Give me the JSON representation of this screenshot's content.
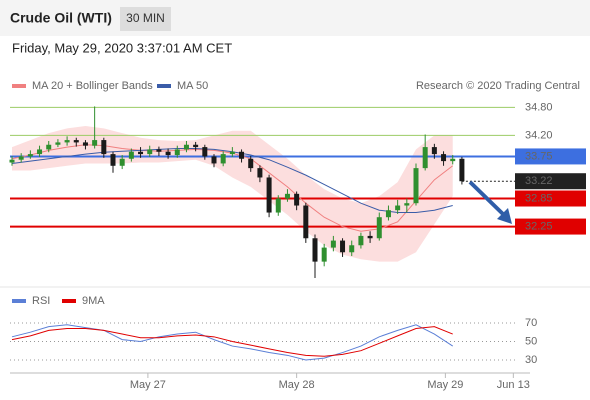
{
  "header": {
    "title": "Crude Oil (WTI)",
    "interval": "30 MIN",
    "timestamp": "Friday, May 29, 2020 3:37:01 AM CET"
  },
  "chart_data": [
    {
      "type": "candlestick",
      "legend": [
        {
          "name": "MA 20 + Bollinger Bands",
          "color": "#f08080"
        },
        {
          "name": "MA 50",
          "color": "#3a5ca8"
        }
      ],
      "credit": "Research © 2020 Trading Central",
      "xlim": [
        0,
        55
      ],
      "ylim": [
        31.0,
        35.0
      ],
      "up_color": "#2f8f2f",
      "down_color": "#1a1a1a",
      "open": [
        33.62,
        33.68,
        33.75,
        33.8,
        33.9,
        34.0,
        34.05,
        34.1,
        34.05,
        33.98,
        34.1,
        33.8,
        33.55,
        33.7,
        33.85,
        33.8,
        33.9,
        33.85,
        33.78,
        33.9,
        34.0,
        33.95,
        33.75,
        33.6,
        33.8,
        33.85,
        33.7,
        33.5,
        33.3,
        32.55,
        32.85,
        32.95,
        32.7,
        32.0,
        31.5,
        31.8,
        31.95,
        31.7,
        31.85,
        32.05,
        32.0,
        32.45,
        32.6,
        32.7,
        32.75,
        33.5,
        33.95,
        33.8,
        33.65,
        33.7
      ],
      "high": [
        33.76,
        33.82,
        33.88,
        33.98,
        34.08,
        34.12,
        34.18,
        34.15,
        34.1,
        34.82,
        34.15,
        33.85,
        33.78,
        33.92,
        33.95,
        33.98,
        33.96,
        33.92,
        33.98,
        34.08,
        34.06,
        34.0,
        33.8,
        33.86,
        33.95,
        33.9,
        33.76,
        33.56,
        33.36,
        32.92,
        33.05,
        33.0,
        32.76,
        32.08,
        31.88,
        32.05,
        32.0,
        31.95,
        32.12,
        32.15,
        32.55,
        32.7,
        32.82,
        32.85,
        33.6,
        34.22,
        34.02,
        33.86,
        33.78,
        33.74
      ],
      "low": [
        33.55,
        33.62,
        33.7,
        33.74,
        33.84,
        33.95,
        33.98,
        33.96,
        33.9,
        33.92,
        33.72,
        33.4,
        33.48,
        33.64,
        33.72,
        33.74,
        33.76,
        33.7,
        33.72,
        33.84,
        33.86,
        33.68,
        33.52,
        33.54,
        33.74,
        33.62,
        33.42,
        33.2,
        32.45,
        32.48,
        32.78,
        32.6,
        31.9,
        31.15,
        31.4,
        31.72,
        31.6,
        31.62,
        31.78,
        31.9,
        31.95,
        32.38,
        32.52,
        32.55,
        32.7,
        33.45,
        33.7,
        33.55,
        33.58,
        33.15
      ],
      "close": [
        33.68,
        33.75,
        33.8,
        33.9,
        34.0,
        34.05,
        34.1,
        34.05,
        33.98,
        34.1,
        33.8,
        33.55,
        33.7,
        33.85,
        33.8,
        33.9,
        33.85,
        33.78,
        33.9,
        34.0,
        33.95,
        33.75,
        33.6,
        33.8,
        33.85,
        33.7,
        33.5,
        33.3,
        32.55,
        32.85,
        32.95,
        32.7,
        32.0,
        31.5,
        31.8,
        31.95,
        31.7,
        31.85,
        32.05,
        32.0,
        32.45,
        32.6,
        32.7,
        32.75,
        33.5,
        33.95,
        33.8,
        33.65,
        33.7,
        33.22
      ],
      "overlay_x": [
        0,
        2,
        4,
        6,
        8,
        10,
        12,
        14,
        16,
        18,
        20,
        22,
        24,
        26,
        28,
        30,
        32,
        34,
        36,
        38,
        40,
        42,
        44,
        46,
        48
      ],
      "band_color": "#fbd6d6",
      "band_upper": [
        33.95,
        34.1,
        34.25,
        34.35,
        34.4,
        34.35,
        34.25,
        34.15,
        34.1,
        34.08,
        34.1,
        34.2,
        34.3,
        34.3,
        34.0,
        33.7,
        33.35,
        33.05,
        32.85,
        32.75,
        32.9,
        33.2,
        33.9,
        34.2,
        34.2
      ],
      "band_lower": [
        33.45,
        33.45,
        33.5,
        33.55,
        33.6,
        33.6,
        33.6,
        33.62,
        33.62,
        33.65,
        33.68,
        33.55,
        33.3,
        33.1,
        32.8,
        32.5,
        32.15,
        31.85,
        31.65,
        31.55,
        31.5,
        31.5,
        31.7,
        32.3,
        32.9
      ],
      "ma20": [
        33.7,
        33.78,
        33.88,
        33.95,
        34.0,
        33.98,
        33.92,
        33.88,
        33.86,
        33.88,
        33.9,
        33.88,
        33.82,
        33.7,
        33.4,
        33.1,
        32.75,
        32.45,
        32.25,
        32.15,
        32.2,
        32.35,
        32.8,
        33.25,
        33.55
      ],
      "ma50": [
        33.6,
        33.65,
        33.7,
        33.75,
        33.8,
        33.84,
        33.86,
        33.88,
        33.9,
        33.92,
        33.92,
        33.9,
        33.85,
        33.78,
        33.68,
        33.52,
        33.35,
        33.15,
        32.95,
        32.75,
        32.6,
        32.55,
        32.55,
        32.6,
        32.7
      ],
      "levels": [
        {
          "value": 34.8,
          "label": "34.80",
          "color": "#9ccc65",
          "style": "text"
        },
        {
          "value": 34.2,
          "label": "34.20",
          "color": "#9ccc65",
          "style": "text"
        },
        {
          "value": 33.75,
          "label": "33.75",
          "color": "#3d6fe0",
          "style": "box"
        },
        {
          "value": 33.22,
          "label": "33.22",
          "color": "#222222",
          "style": "dotted"
        },
        {
          "value": 32.85,
          "label": "32.85",
          "color": "#e00000",
          "style": "box"
        },
        {
          "value": 32.25,
          "label": "32.25",
          "color": "#e00000",
          "style": "box"
        }
      ]
    },
    {
      "type": "line",
      "xlim": [
        0,
        55
      ],
      "ylim": [
        20,
        80
      ],
      "yticks": [
        30,
        50,
        70
      ],
      "xticks": [
        {
          "value": 14.8,
          "label": "May 27"
        },
        {
          "value": 31,
          "label": "May 28"
        },
        {
          "value": 47.2,
          "label": "May 29"
        },
        {
          "value": 54.6,
          "label": "Jun 13"
        }
      ],
      "x": [
        0,
        2,
        4,
        6,
        8,
        10,
        12,
        14,
        16,
        18,
        20,
        22,
        24,
        26,
        28,
        30,
        32,
        34,
        36,
        38,
        40,
        42,
        44,
        46,
        48
      ],
      "series": [
        {
          "name": "RSI",
          "color": "#5b7fd6",
          "values": [
            55,
            60,
            66,
            68,
            65,
            62,
            52,
            50,
            55,
            58,
            60,
            52,
            45,
            42,
            38,
            35,
            30,
            32,
            38,
            45,
            55,
            62,
            68,
            58,
            45
          ]
        },
        {
          "name": "9MA",
          "color": "#e00000",
          "values": [
            52,
            56,
            62,
            64,
            64,
            62,
            58,
            54,
            54,
            56,
            57,
            55,
            50,
            46,
            42,
            38,
            35,
            34,
            36,
            40,
            48,
            56,
            64,
            66,
            58
          ]
        }
      ]
    }
  ]
}
